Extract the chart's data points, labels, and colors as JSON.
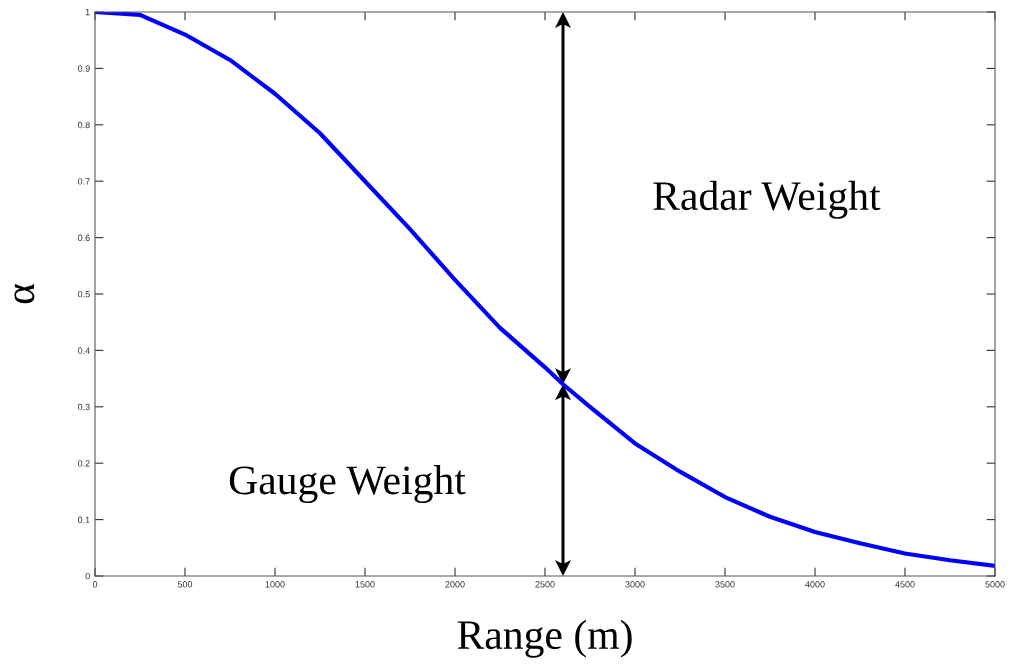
{
  "chart_data": {
    "type": "line",
    "xlabel": "Range (m)",
    "ylabel": "α",
    "x": [
      0,
      250,
      500,
      750,
      1000,
      1250,
      1500,
      1750,
      2000,
      2250,
      2500,
      2600,
      2750,
      3000,
      3250,
      3500,
      3750,
      4000,
      4250,
      4500,
      4750,
      5000
    ],
    "series": [
      {
        "color": "#0000ff",
        "values": [
          1.0,
          0.995,
          0.96,
          0.915,
          0.855,
          0.785,
          0.7,
          0.615,
          0.525,
          0.44,
          0.37,
          0.34,
          0.3,
          0.235,
          0.185,
          0.14,
          0.105,
          0.078,
          0.058,
          0.04,
          0.028,
          0.018
        ]
      }
    ],
    "xlim": [
      0,
      5000
    ],
    "ylim": [
      0,
      1
    ],
    "xticks": [
      0,
      500,
      1000,
      1500,
      2000,
      2500,
      3000,
      3500,
      4000,
      4500,
      5000
    ],
    "yticks": [
      0,
      0.1,
      0.2,
      0.3,
      0.4,
      0.5,
      0.6,
      0.7,
      0.8,
      0.9,
      1
    ],
    "grid": false,
    "legend": false,
    "marker": "none",
    "line_style": "solid",
    "annotations": [
      "Radar Weight",
      "Gauge Weight"
    ]
  }
}
